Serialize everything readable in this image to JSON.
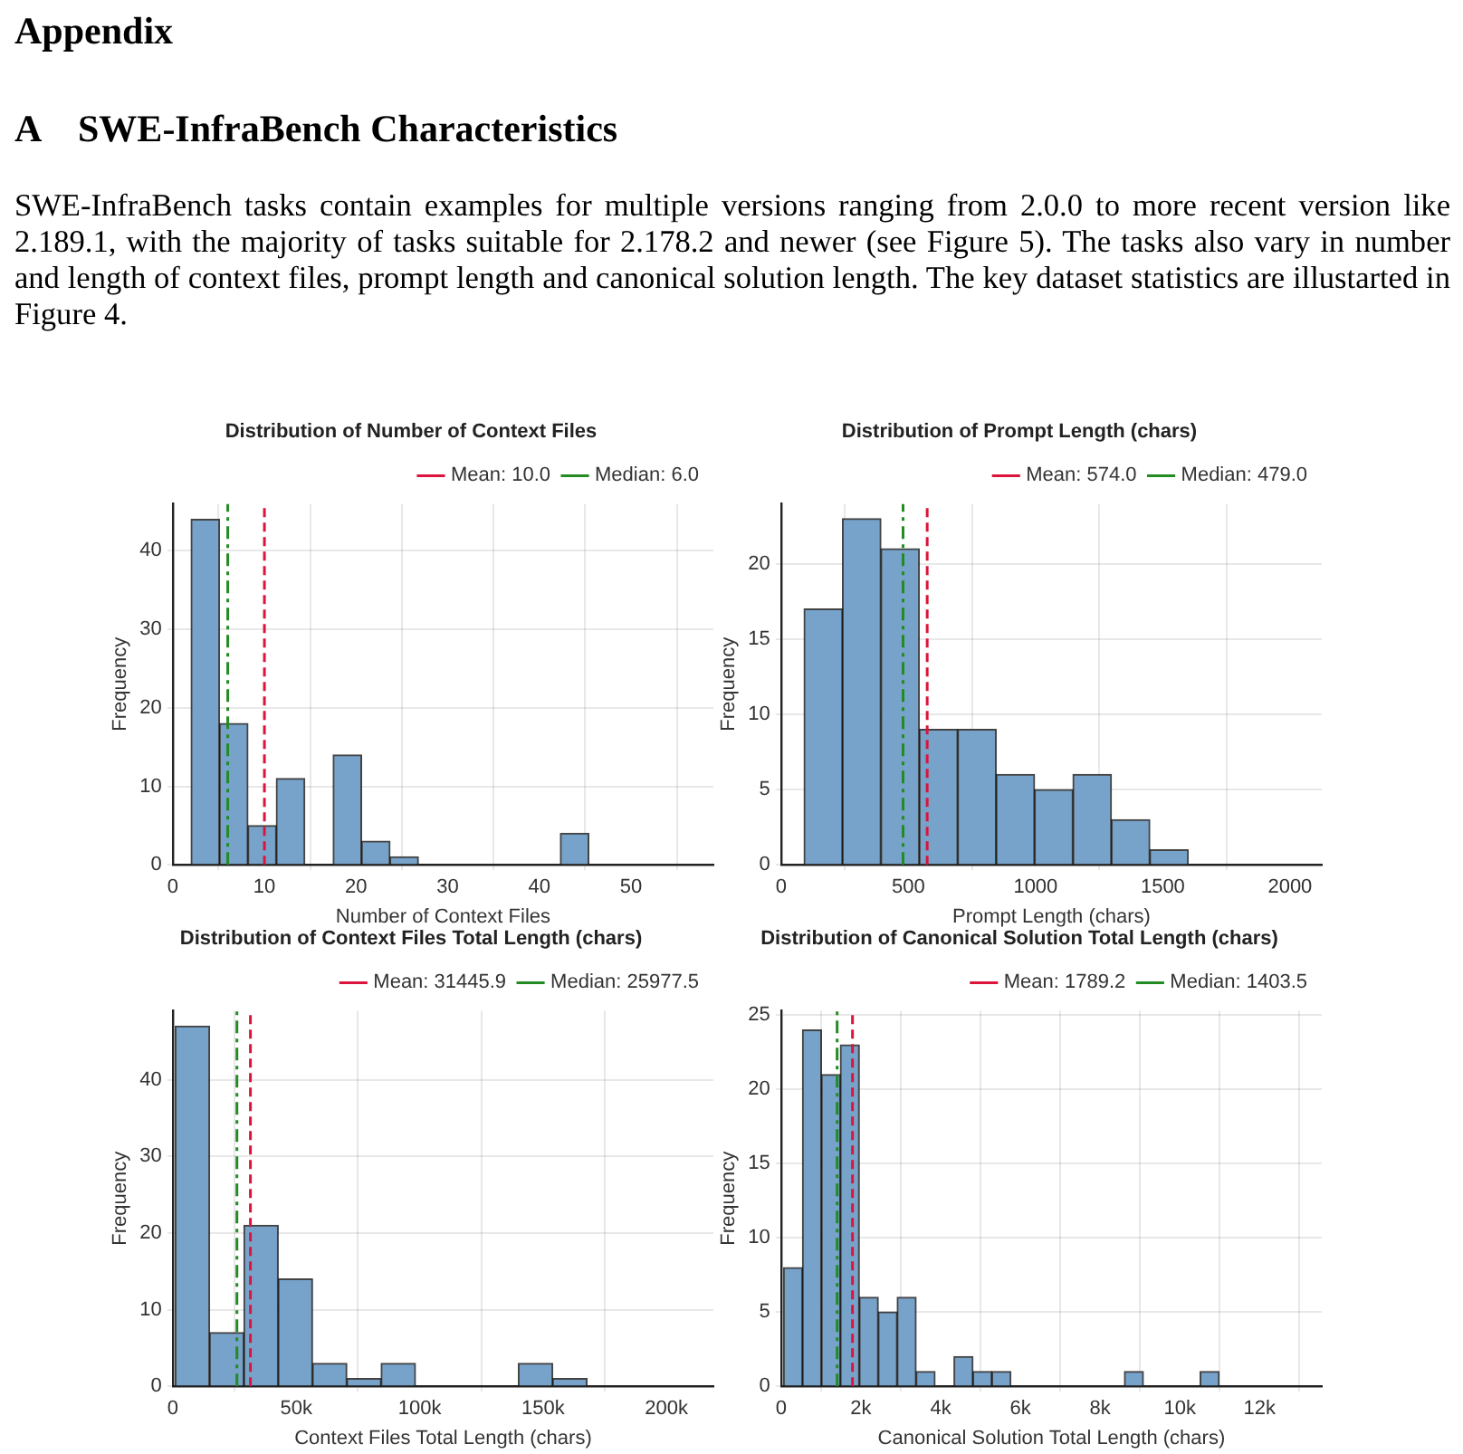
{
  "chart_data": [
    {
      "type": "other",
      "title": "Appendix",
      "subtitle": "A    SWE-InfraBench Characteristics",
      "annotations": [
        "SWE-InfraBench tasks contain examples for multiple versions ranging from 2.0.0 to more recent version like 2.189.1, with the majority of tasks suitable for 2.178.2 and newer (see Figure 5). The tasks also vary in number and length of context files, prompt length and canonical solution length. The key dataset statistics are illustarted in Figure 4."
      ]
    },
    {
      "type": "histogram",
      "title": "Distribution of Number of Context Files",
      "xlabel": "Number of Context Files",
      "ylabel": "Frequency",
      "color": "#77a3cb",
      "bins": [
        2,
        5.1,
        8.2,
        11.3,
        14.4,
        17.5,
        20.6,
        23.7,
        26.8,
        29.9,
        33,
        36.1,
        39.2,
        42.3,
        45.4,
        48.5,
        51.6,
        54.7,
        57.8
      ],
      "values": [
        44,
        18,
        5,
        11,
        0,
        14,
        3,
        1,
        0,
        0,
        0,
        0,
        0,
        4,
        0,
        0,
        0,
        0
      ],
      "xlim": [
        0,
        59
      ],
      "xticks": [
        0,
        10,
        20,
        30,
        40,
        50
      ],
      "ylim": [
        0,
        46
      ],
      "yticks": [
        0,
        10,
        20,
        30,
        40
      ],
      "grid": true,
      "legend": "top right",
      "ref_lines": [
        {
          "axis": "x",
          "value": 10.0,
          "label": "Mean: 10.0",
          "color": "#dc143c",
          "line_style": "dashed"
        },
        {
          "axis": "x",
          "value": 6.0,
          "label": "Median: 6.0",
          "color": "#228b22",
          "line_style": "dashdot"
        }
      ]
    },
    {
      "type": "histogram",
      "title": "Distribution of Prompt Length (chars)",
      "xlabel": "Prompt Length (chars)",
      "ylabel": "Frequency",
      "color": "#77a3cb",
      "bins": [
        90,
        241,
        392,
        543,
        694,
        845,
        996,
        1147,
        1298,
        1449,
        1600
      ],
      "values": [
        17,
        23,
        21,
        9,
        9,
        6,
        5,
        6,
        3,
        1
      ],
      "xlim": [
        0,
        2125
      ],
      "xticks": [
        0,
        500,
        1000,
        1500,
        2000
      ],
      "ylim": [
        0,
        24
      ],
      "yticks": [
        0,
        5,
        10,
        15,
        20
      ],
      "grid": true,
      "legend": "top right",
      "ref_lines": [
        {
          "axis": "x",
          "value": 574.0,
          "label": "Mean: 574.0",
          "color": "#dc143c",
          "line_style": "dashed"
        },
        {
          "axis": "x",
          "value": 479.0,
          "label": "Median: 479.0",
          "color": "#228b22",
          "line_style": "dashdot"
        }
      ]
    },
    {
      "type": "histogram",
      "title": "Distribution of Context Files Total Length (chars)",
      "xlabel": "Context Files Total Length (chars)",
      "ylabel": "Frequency",
      "color": "#77a3cb",
      "bins": [
        1000,
        14900,
        28800,
        42700,
        56600,
        70500,
        84400,
        98300,
        112200,
        126100,
        140000,
        153900,
        167800,
        181700,
        195600,
        209500
      ],
      "values": [
        47,
        7,
        21,
        14,
        3,
        1,
        3,
        0,
        0,
        0,
        3,
        1,
        0,
        0,
        0
      ],
      "xlim": [
        0,
        219000
      ],
      "xticks": [
        0,
        {
          "value": 50000,
          "label": "50k"
        },
        {
          "value": 100000,
          "label": "100k"
        },
        {
          "value": 150000,
          "label": "150k"
        },
        {
          "value": 200000,
          "label": "200k"
        }
      ],
      "ylim": [
        0,
        49
      ],
      "yticks": [
        0,
        10,
        20,
        30,
        40
      ],
      "grid": true,
      "legend": "top right",
      "ref_lines": [
        {
          "axis": "x",
          "value": 31445.9,
          "label": "Mean: 31445.9",
          "color": "#dc143c",
          "line_style": "dashed"
        },
        {
          "axis": "x",
          "value": 25977.5,
          "label": "Median: 25977.5",
          "color": "#228b22",
          "line_style": "dashdot"
        }
      ]
    },
    {
      "type": "histogram",
      "title": "Distribution of Canonical Solution Total Length (chars)",
      "xlabel": "Canonical Solution Total Length (chars)",
      "ylabel": "Frequency",
      "color": "#77a3cb",
      "bins": [
        60,
        535,
        1010,
        1485,
        1960,
        2435,
        2910,
        3385,
        3860,
        4335,
        4810,
        5285,
        5760,
        6235,
        6710,
        7185,
        7660,
        8135,
        8610,
        9085,
        9560,
        10035,
        10510,
        10985,
        11460,
        11935,
        12410,
        12885
      ],
      "values": [
        8,
        24,
        21,
        23,
        6,
        5,
        6,
        1,
        0,
        2,
        1,
        1,
        0,
        0,
        0,
        0,
        0,
        0,
        1,
        0,
        0,
        0,
        1,
        0,
        0,
        0,
        0
      ],
      "xlim": [
        0,
        13560
      ],
      "xticks": [
        0,
        {
          "value": 2000,
          "label": "2k"
        },
        {
          "value": 4000,
          "label": "4k"
        },
        {
          "value": 6000,
          "label": "6k"
        },
        {
          "value": 8000,
          "label": "8k"
        },
        {
          "value": 10000,
          "label": "10k"
        },
        {
          "value": 12000,
          "label": "12k"
        }
      ],
      "ylim": [
        0,
        25.3
      ],
      "yticks": [
        0,
        5,
        10,
        15,
        20,
        25
      ],
      "grid": true,
      "legend": "top right",
      "ref_lines": [
        {
          "axis": "x",
          "value": 1789.2,
          "label": "Mean: 1789.2",
          "color": "#dc143c",
          "line_style": "dashed"
        },
        {
          "axis": "x",
          "value": 1403.5,
          "label": "Median: 1403.5",
          "color": "#228b22",
          "line_style": "dashdot"
        }
      ]
    }
  ]
}
